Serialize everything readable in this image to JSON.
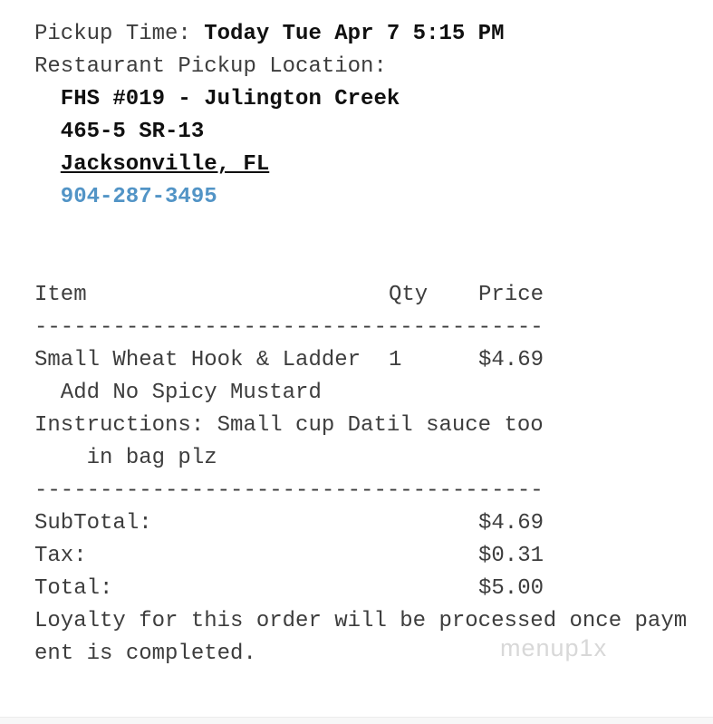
{
  "pickup": {
    "label": "Pickup Time: ",
    "value": "Today Tue Apr 7 5:15 PM"
  },
  "location": {
    "heading": "Restaurant Pickup Location:",
    "name": "FHS #019 - Julington Creek",
    "address": "465-5 SR-13",
    "city": "Jacksonville, FL",
    "phone": "904-287-3495"
  },
  "order": {
    "columns": {
      "item": "Item",
      "qty": "Qty",
      "price": "Price"
    },
    "divider": "---------------------------------------",
    "items": [
      {
        "name": "Small Wheat Hook & Ladder",
        "qty": "1",
        "price": "$4.69",
        "modifier": "Add No Spicy Mustard"
      }
    ],
    "instructions_line1": "Instructions: Small cup Datil sauce too",
    "instructions_line2": "in bag plz"
  },
  "totals": {
    "rows": [
      {
        "label": "SubTotal:",
        "value": "$4.69"
      },
      {
        "label": "Tax:",
        "value": "$0.31"
      },
      {
        "label": "Total:",
        "value": "$5.00"
      }
    ]
  },
  "footer": {
    "line1": "Loyalty for this order will be processed once paym",
    "line2": "ent is completed."
  },
  "watermark": "menup1x",
  "colors": {
    "link_blue": "#5294c6",
    "body_text": "#3d3d3d",
    "bold_text": "#101010",
    "watermark_gray": "#d8d8d8"
  }
}
